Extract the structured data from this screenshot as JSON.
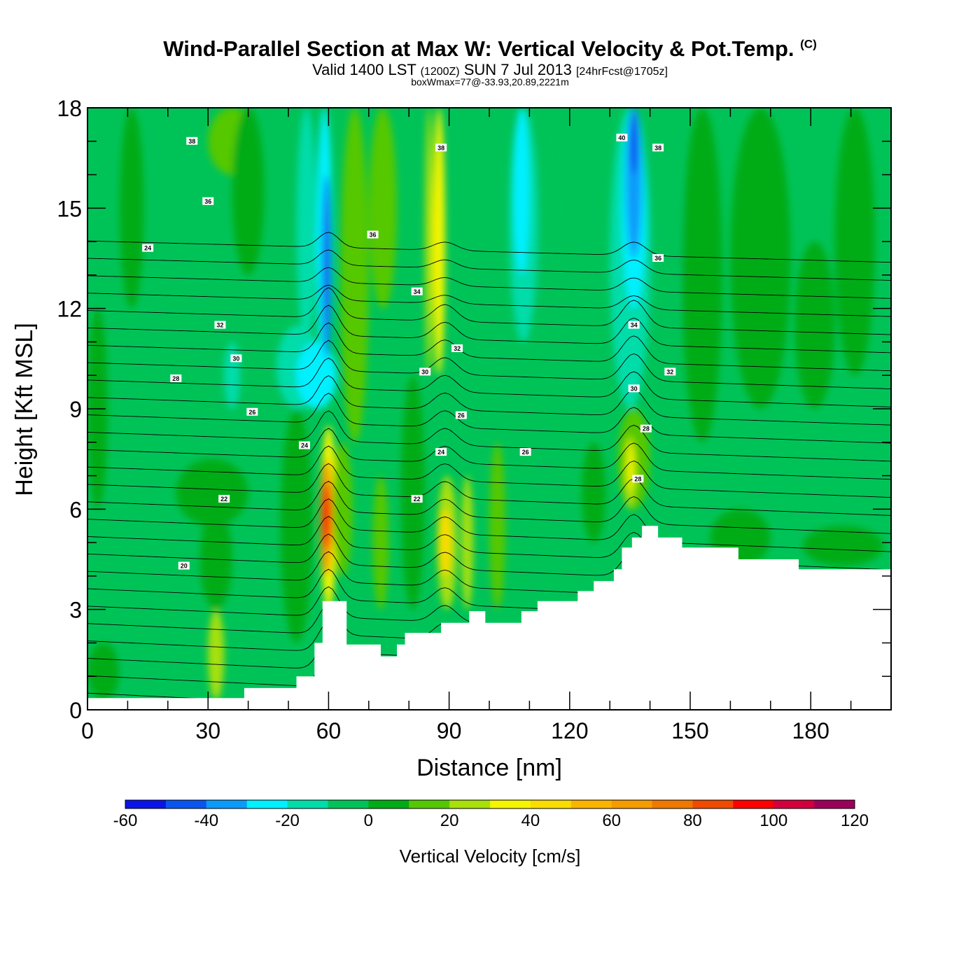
{
  "header": {
    "title": "Wind-Parallel Section at Max W: Vertical Velocity & Pot.Temp.",
    "copyright": "(C)",
    "valid_prefix": "Valid 1400 LST",
    "valid_utc": "(1200Z)",
    "valid_date": "SUN 7 Jul 2013",
    "forecast": "[24hrFcst@1705z]",
    "box_info": "boxWmax=77@-33.93,20.89,2221m"
  },
  "chart_data": {
    "type": "heatmap",
    "xlabel": "Distance [nm]",
    "ylabel": "Height [Kft MSL]",
    "xlim": [
      0,
      200
    ],
    "ylim": [
      0,
      18
    ],
    "xticks": [
      0,
      30,
      60,
      90,
      120,
      150,
      180
    ],
    "yticks": [
      0,
      3,
      6,
      9,
      12,
      15,
      18
    ],
    "colorbar": {
      "title": "Vertical Velocity [cm/s]",
      "levels": [
        -60,
        -50,
        -40,
        -30,
        -20,
        -10,
        0,
        10,
        20,
        30,
        40,
        50,
        60,
        70,
        80,
        90,
        100,
        110,
        120
      ],
      "tick_labels": [
        -60,
        -40,
        -20,
        0,
        20,
        40,
        60,
        80,
        100,
        120
      ],
      "colors": [
        "#0a14e6",
        "#0a55f0",
        "#0a9bfa",
        "#00f0ff",
        "#00dcaa",
        "#00c358",
        "#00ac15",
        "#55c804",
        "#a8e00a",
        "#f5f500",
        "#fadc00",
        "#fab400",
        "#f59b00",
        "#f07800",
        "#f04a00",
        "#ff0000",
        "#d2003c",
        "#9b005a"
      ]
    },
    "background_color": "#00c358",
    "velocity_regions": [
      {
        "x": [
          0,
          8
        ],
        "y": [
          0.3,
          2.0
        ],
        "w": 0
      },
      {
        "x": [
          8,
          24
        ],
        "y": [
          0.3,
          3.0
        ],
        "w": -5
      },
      {
        "x": [
          0,
          5
        ],
        "y": [
          6,
          12
        ],
        "w": 5
      },
      {
        "x": [
          8,
          14
        ],
        "y": [
          12,
          18
        ],
        "w": 5
      },
      {
        "x": [
          30,
          34
        ],
        "y": [
          0.3,
          3.0
        ],
        "w": 25
      },
      {
        "x": [
          28,
          36
        ],
        "y": [
          3,
          6
        ],
        "w": 5
      },
      {
        "x": [
          22,
          40
        ],
        "y": [
          5.5,
          7.5
        ],
        "w": 5
      },
      {
        "x": [
          30,
          42
        ],
        "y": [
          16,
          18
        ],
        "w": 15
      },
      {
        "x": [
          36,
          44
        ],
        "y": [
          13,
          18
        ],
        "w": 5
      },
      {
        "x": [
          34,
          38
        ],
        "y": [
          9,
          11
        ],
        "w": -15
      },
      {
        "x": [
          48,
          56
        ],
        "y": [
          2,
          9
        ],
        "w": 5
      },
      {
        "x": [
          47,
          58
        ],
        "y": [
          9,
          11.5
        ],
        "w": -15
      },
      {
        "x": [
          52,
          62
        ],
        "y": [
          9,
          11
        ],
        "w": -25
      },
      {
        "x": [
          58,
          62
        ],
        "y": [
          3,
          8.5
        ],
        "w": 35
      },
      {
        "x": [
          58,
          61
        ],
        "y": [
          4,
          7.5
        ],
        "w": 65
      },
      {
        "x": [
          58.5,
          60.5
        ],
        "y": [
          4.8,
          6.8
        ],
        "w": 95
      },
      {
        "x": [
          61,
          66
        ],
        "y": [
          4,
          8
        ],
        "w": 15
      },
      {
        "x": [
          52,
          57
        ],
        "y": [
          11,
          18
        ],
        "w": -15
      },
      {
        "x": [
          57,
          61
        ],
        "y": [
          10,
          18
        ],
        "w": -25
      },
      {
        "x": [
          58.5,
          60.5
        ],
        "y": [
          10.5,
          16
        ],
        "w": -45
      },
      {
        "x": [
          63,
          70
        ],
        "y": [
          8,
          18
        ],
        "w": 15
      },
      {
        "x": [
          70,
          77
        ],
        "y": [
          12,
          18
        ],
        "w": 10
      },
      {
        "x": [
          71,
          75
        ],
        "y": [
          3,
          7
        ],
        "w": 15
      },
      {
        "x": [
          78,
          84
        ],
        "y": [
          3,
          10
        ],
        "w": 5
      },
      {
        "x": [
          84,
          86
        ],
        "y": [
          10,
          18
        ],
        "w": 25
      },
      {
        "x": [
          86,
          89
        ],
        "y": [
          10,
          18
        ],
        "w": 35
      },
      {
        "x": [
          87,
          92
        ],
        "y": [
          3,
          7
        ],
        "w": 25
      },
      {
        "x": [
          87.5,
          90.5
        ],
        "y": [
          4,
          6
        ],
        "w": 40
      },
      {
        "x": [
          93,
          96
        ],
        "y": [
          3,
          7
        ],
        "w": 20
      },
      {
        "x": [
          100,
          104
        ],
        "y": [
          3,
          8
        ],
        "w": 10
      },
      {
        "x": [
          105,
          112
        ],
        "y": [
          11,
          18
        ],
        "w": -15
      },
      {
        "x": [
          106,
          110
        ],
        "y": [
          13,
          18
        ],
        "w": -25
      },
      {
        "x": [
          112,
          118
        ],
        "y": [
          12,
          18
        ],
        "w": -5
      },
      {
        "x": [
          123,
          129
        ],
        "y": [
          5,
          8
        ],
        "w": 5
      },
      {
        "x": [
          132,
          140
        ],
        "y": [
          6,
          9
        ],
        "w": 15
      },
      {
        "x": [
          133.5,
          136.5
        ],
        "y": [
          6,
          8.2
        ],
        "w": 28
      },
      {
        "x": [
          134.5,
          136
        ],
        "y": [
          6.5,
          8
        ],
        "w": 35
      },
      {
        "x": [
          130,
          140
        ],
        "y": [
          9,
          18
        ],
        "w": -15
      },
      {
        "x": [
          133,
          139
        ],
        "y": [
          12,
          18
        ],
        "w": -25
      },
      {
        "x": [
          134,
          138
        ],
        "y": [
          13.5,
          18
        ],
        "w": -35
      },
      {
        "x": [
          135,
          137
        ],
        "y": [
          16,
          18
        ],
        "w": -45
      },
      {
        "x": [
          140,
          148
        ],
        "y": [
          11,
          18
        ],
        "w": -5
      },
      {
        "x": [
          148,
          158
        ],
        "y": [
          8,
          18
        ],
        "w": 5
      },
      {
        "x": [
          160,
          175
        ],
        "y": [
          9,
          18
        ],
        "w": 0
      },
      {
        "x": [
          176,
          186
        ],
        "y": [
          9,
          14
        ],
        "w": 0
      },
      {
        "x": [
          186,
          196
        ],
        "y": [
          10,
          18
        ],
        "w": 5
      },
      {
        "x": [
          155,
          170
        ],
        "y": [
          4.3,
          6
        ],
        "w": 5
      },
      {
        "x": [
          178,
          198
        ],
        "y": [
          4.3,
          5.5
        ],
        "w": 0
      }
    ],
    "terrain": [
      [
        0,
        0.35
      ],
      [
        39,
        0.35
      ],
      [
        39,
        0.65
      ],
      [
        52,
        0.65
      ],
      [
        52,
        1.0
      ],
      [
        56.5,
        1.0
      ],
      [
        56.5,
        2.0
      ],
      [
        58.5,
        2.0
      ],
      [
        58.5,
        3.25
      ],
      [
        64.5,
        3.25
      ],
      [
        64.5,
        1.95
      ],
      [
        73,
        1.95
      ],
      [
        73,
        1.6
      ],
      [
        77,
        1.6
      ],
      [
        77,
        1.95
      ],
      [
        79,
        1.95
      ],
      [
        79,
        2.3
      ],
      [
        88,
        2.3
      ],
      [
        88,
        2.6
      ],
      [
        95,
        2.6
      ],
      [
        95,
        2.95
      ],
      [
        99,
        2.95
      ],
      [
        99,
        2.6
      ],
      [
        108,
        2.6
      ],
      [
        108,
        2.95
      ],
      [
        112,
        2.95
      ],
      [
        112,
        3.25
      ],
      [
        122,
        3.25
      ],
      [
        122,
        3.55
      ],
      [
        126,
        3.55
      ],
      [
        126,
        3.85
      ],
      [
        131,
        3.85
      ],
      [
        131,
        4.2
      ],
      [
        133,
        4.2
      ],
      [
        133,
        4.85
      ],
      [
        135.5,
        4.85
      ],
      [
        135.5,
        5.15
      ],
      [
        138,
        5.15
      ],
      [
        138,
        5.5
      ],
      [
        142,
        5.5
      ],
      [
        142,
        5.15
      ],
      [
        148,
        5.15
      ],
      [
        148,
        4.85
      ],
      [
        162,
        4.85
      ],
      [
        162,
        4.5
      ],
      [
        177,
        4.5
      ],
      [
        177,
        4.2
      ],
      [
        200,
        4.2
      ]
    ],
    "theta_contours": {
      "levels_start": 20,
      "levels_end": 46,
      "step": 1,
      "surface_base_y": 0.5,
      "spacing_kft": 0.52,
      "waves": [
        {
          "x": 60,
          "amp": 0.9,
          "width": 3.5
        },
        {
          "x": 89,
          "amp": 0.5,
          "width": 4
        },
        {
          "x": 136,
          "amp": 0.8,
          "width": 4
        }
      ]
    },
    "contour_labels": [
      {
        "x": 26,
        "y": 17.0,
        "text": "38"
      },
      {
        "x": 30,
        "y": 15.2,
        "text": "36"
      },
      {
        "x": 15,
        "y": 13.8,
        "text": "24"
      },
      {
        "x": 71,
        "y": 14.2,
        "text": "36"
      },
      {
        "x": 88,
        "y": 16.8,
        "text": "38"
      },
      {
        "x": 133,
        "y": 17.1,
        "text": "40"
      },
      {
        "x": 142,
        "y": 16.8,
        "text": "38"
      },
      {
        "x": 82,
        "y": 12.5,
        "text": "34"
      },
      {
        "x": 142,
        "y": 13.5,
        "text": "36"
      },
      {
        "x": 33,
        "y": 11.5,
        "text": "32"
      },
      {
        "x": 136,
        "y": 11.5,
        "text": "34"
      },
      {
        "x": 37,
        "y": 10.5,
        "text": "30"
      },
      {
        "x": 92,
        "y": 10.8,
        "text": "32"
      },
      {
        "x": 84,
        "y": 10.1,
        "text": "30"
      },
      {
        "x": 22,
        "y": 9.9,
        "text": "28"
      },
      {
        "x": 145,
        "y": 10.1,
        "text": "32"
      },
      {
        "x": 136,
        "y": 9.6,
        "text": "30"
      },
      {
        "x": 41,
        "y": 8.9,
        "text": "26"
      },
      {
        "x": 93,
        "y": 8.8,
        "text": "26"
      },
      {
        "x": 139,
        "y": 8.4,
        "text": "28"
      },
      {
        "x": 54,
        "y": 7.9,
        "text": "24"
      },
      {
        "x": 88,
        "y": 7.7,
        "text": "24"
      },
      {
        "x": 109,
        "y": 7.7,
        "text": "26"
      },
      {
        "x": 137,
        "y": 6.9,
        "text": "28"
      },
      {
        "x": 34,
        "y": 6.3,
        "text": "22"
      },
      {
        "x": 82,
        "y": 6.3,
        "text": "22"
      },
      {
        "x": 24,
        "y": 4.3,
        "text": "20"
      }
    ]
  }
}
